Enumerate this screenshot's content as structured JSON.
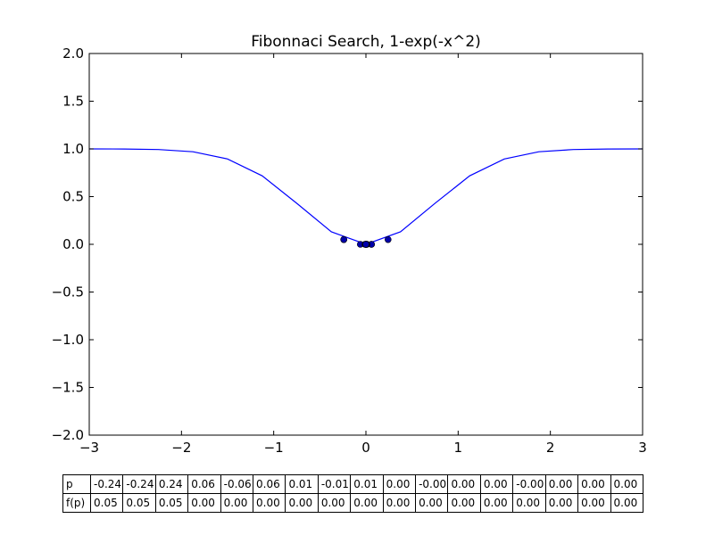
{
  "chart_data": {
    "type": "line",
    "title": "Fibonnaci Search, 1-exp(-x^2)",
    "xlabel": "",
    "ylabel": "",
    "xlim": [
      -3,
      3
    ],
    "ylim": [
      -2,
      2
    ],
    "xticks": [
      -3,
      -2,
      -1,
      0,
      1,
      2,
      3
    ],
    "xtick_labels": [
      "−3",
      "−2",
      "−1",
      "0",
      "1",
      "2",
      "3"
    ],
    "yticks": [
      2.0,
      1.5,
      1.0,
      0.5,
      0.0,
      -0.5,
      -1.0,
      -1.5,
      -2.0
    ],
    "ytick_labels": [
      "2.0",
      "1.5",
      "1.0",
      "0.5",
      "0.0",
      "−0.5",
      "−1.0",
      "−1.5",
      "−2.0"
    ],
    "grid": false,
    "line_color": "#0000ff",
    "marker_color": "#0000aa",
    "series": [
      {
        "type": "line",
        "x": [
          -3.0,
          -2.625,
          -2.25,
          -1.875,
          -1.5,
          -1.125,
          -0.75,
          -0.375,
          0.0,
          0.375,
          0.75,
          1.125,
          1.5,
          1.875,
          2.25,
          2.625,
          3.0
        ],
        "y": [
          0.9999,
          0.999,
          0.9937,
          0.9703,
          0.8946,
          0.718,
          0.4302,
          0.1311,
          0.0,
          0.1311,
          0.4302,
          0.718,
          0.8946,
          0.9703,
          0.9937,
          0.999,
          0.9999
        ]
      },
      {
        "type": "scatter",
        "x": [
          -0.24,
          -0.24,
          0.24,
          0.06,
          -0.06,
          0.06,
          0.01,
          -0.01,
          0.01,
          0.0,
          0.0,
          0.0,
          0.0,
          0.0,
          0.0,
          0.0,
          0.0
        ],
        "y": [
          0.05,
          0.05,
          0.05,
          0.0,
          0.0,
          0.0,
          0.0,
          0.0,
          0.0,
          0.0,
          0.0,
          0.0,
          0.0,
          0.0,
          0.0,
          0.0,
          0.0
        ]
      }
    ]
  },
  "table": {
    "row_labels": [
      "p",
      "f(p)"
    ],
    "rows": [
      [
        "-0.24",
        "-0.24",
        "0.24",
        "0.06",
        "-0.06",
        "0.06",
        "0.01",
        "-0.01",
        "0.01",
        "0.00",
        "-0.00",
        "0.00",
        "0.00",
        "-0.00",
        "0.00",
        "0.00",
        "0.00"
      ],
      [
        "0.05",
        "0.05",
        "0.05",
        "0.00",
        "0.00",
        "0.00",
        "0.00",
        "0.00",
        "0.00",
        "0.00",
        "0.00",
        "0.00",
        "0.00",
        "0.00",
        "0.00",
        "0.00",
        "0.00"
      ]
    ]
  }
}
